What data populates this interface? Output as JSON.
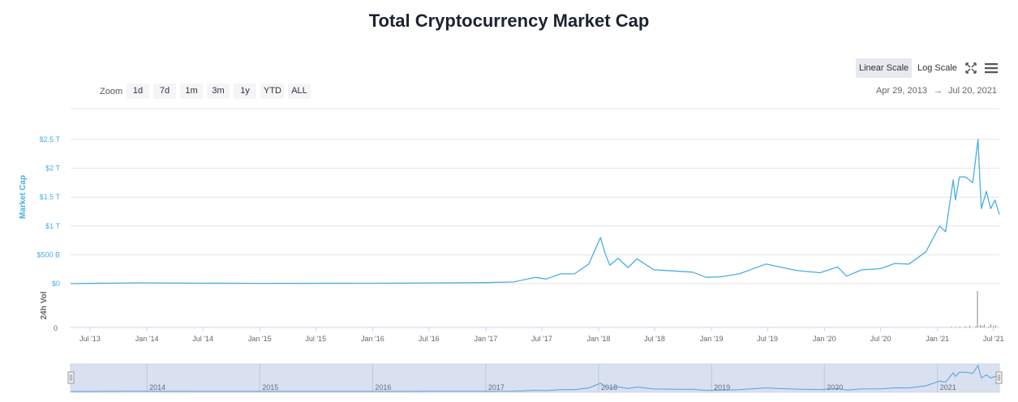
{
  "title": "Total Cryptocurrency Market Cap",
  "toolbar": {
    "linear_scale": "Linear Scale",
    "log_scale": "Log Scale",
    "fullscreen_icon": "fullscreen-icon",
    "menu_icon": "hamburger-menu-icon"
  },
  "zoom": {
    "label": "Zoom",
    "buttons": [
      "1d",
      "7d",
      "1m",
      "3m",
      "1y",
      "YTD",
      "ALL"
    ]
  },
  "range": {
    "from": "Apr 29, 2013",
    "arrow": "→",
    "to": "Jul 20, 2021"
  },
  "colors": {
    "series": "#4aaee3",
    "volume": "#999999",
    "navigator_mask": "#ccd6eb",
    "axis_label": "#4aaee3"
  },
  "chart_data": {
    "type": "line",
    "ylabel": "Market Cap",
    "ylabel2": "24h Vol",
    "yticks": [
      "$0",
      "$500 B",
      "$1 T",
      "$1.5 T",
      "$2 T",
      "$2.5 T"
    ],
    "ytick_values": [
      0,
      0.5,
      1,
      1.5,
      2,
      2.5
    ],
    "y_unit": "T USD",
    "ylim": [
      0,
      2.5
    ],
    "vol_tick": "0",
    "xticks": [
      "Jul '13",
      "Jan '14",
      "Jul '14",
      "Jan '15",
      "Jul '15",
      "Jan '16",
      "Jul '16",
      "Jan '17",
      "Jul '17",
      "Jan '18",
      "Jul '18",
      "Jan '19",
      "Jul '19",
      "Jan '20",
      "Jul '20",
      "Jan '21",
      "Jul '21"
    ],
    "xtick_dates": [
      "2013-07-01",
      "2014-01-01",
      "2014-07-01",
      "2015-01-01",
      "2015-07-01",
      "2016-01-01",
      "2016-07-01",
      "2017-01-01",
      "2017-07-01",
      "2018-01-01",
      "2018-07-01",
      "2019-01-01",
      "2019-07-01",
      "2020-01-01",
      "2020-07-01",
      "2021-01-01",
      "2021-07-01"
    ],
    "navigator_labels": [
      "2014",
      "2015",
      "2016",
      "2017",
      "2018",
      "2019",
      "2020",
      "2021"
    ],
    "navigator_dates": [
      "2014-01-01",
      "2015-01-01",
      "2016-01-01",
      "2017-01-01",
      "2018-01-01",
      "2019-01-01",
      "2020-01-01",
      "2021-01-01"
    ],
    "grid": true,
    "series": [
      {
        "x": [
          "2013-04-29",
          "2013-12-04",
          "2014-06-01",
          "2015-01-15",
          "2016-01-01",
          "2016-07-01",
          "2017-01-01",
          "2017-04-01",
          "2017-06-10",
          "2017-07-15",
          "2017-08-31",
          "2017-10-15",
          "2017-11-30",
          "2017-12-20",
          "2018-01-07",
          "2018-01-20",
          "2018-02-06",
          "2018-03-05",
          "2018-04-06",
          "2018-05-05",
          "2018-06-29",
          "2018-09-01",
          "2018-11-01",
          "2018-12-15",
          "2019-02-01",
          "2019-04-01",
          "2019-06-26",
          "2019-08-01",
          "2019-10-01",
          "2019-12-18",
          "2020-02-13",
          "2020-03-13",
          "2020-05-01",
          "2020-07-01",
          "2020-08-15",
          "2020-10-01",
          "2020-11-24",
          "2021-01-08",
          "2021-01-27",
          "2021-02-21",
          "2021-02-28",
          "2021-03-13",
          "2021-04-01",
          "2021-04-25",
          "2021-05-12",
          "2021-05-19",
          "2021-05-23",
          "2021-06-08",
          "2021-06-22",
          "2021-07-06",
          "2021-07-20"
        ],
        "values": [
          0.0015,
          0.014,
          0.009,
          0.005,
          0.007,
          0.012,
          0.018,
          0.03,
          0.11,
          0.08,
          0.17,
          0.17,
          0.34,
          0.58,
          0.8,
          0.55,
          0.32,
          0.44,
          0.28,
          0.43,
          0.24,
          0.22,
          0.2,
          0.11,
          0.12,
          0.17,
          0.34,
          0.3,
          0.23,
          0.19,
          0.29,
          0.13,
          0.24,
          0.26,
          0.35,
          0.34,
          0.55,
          1.0,
          0.9,
          1.8,
          1.45,
          1.85,
          1.85,
          1.75,
          2.5,
          1.68,
          1.3,
          1.6,
          1.3,
          1.45,
          1.2
        ]
      }
    ],
    "volume_series": {
      "x": [
        "2021-02-14",
        "2021-02-28",
        "2021-03-14",
        "2021-04-01",
        "2021-04-15",
        "2021-05-05",
        "2021-05-10",
        "2021-05-19",
        "2021-05-25",
        "2021-06-01",
        "2021-06-15",
        "2021-06-22",
        "2021-07-01",
        "2021-07-08"
      ],
      "values": [
        0.02,
        0.015,
        0.02,
        0.03,
        0.04,
        0.03,
        0.9,
        0.06,
        0.04,
        0.07,
        0.03,
        0.08,
        0.04,
        0.05
      ]
    }
  }
}
